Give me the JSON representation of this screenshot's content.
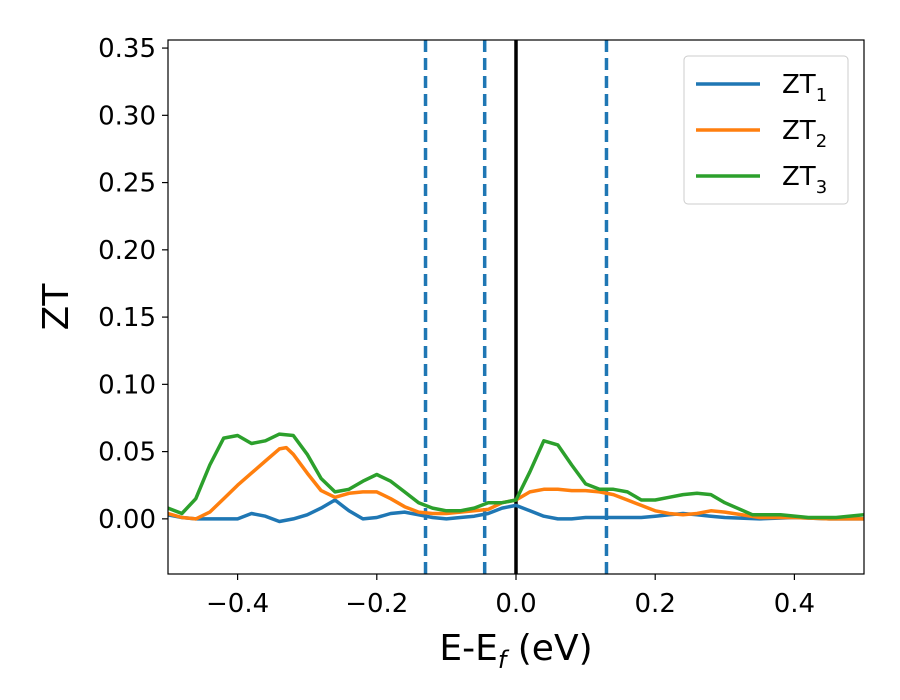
{
  "chart_data": {
    "type": "line",
    "xlabel": "E-E",
    "xlabel_sub": "f",
    "xlabel_unit": " (eV)",
    "ylabel": "ZT",
    "xlim": [
      -0.5,
      0.5
    ],
    "ylim": [
      -0.041,
      0.356
    ],
    "xticks": [
      -0.4,
      -0.2,
      0.0,
      0.2,
      0.4
    ],
    "xtick_labels": [
      "−0.4",
      "−0.2",
      "0.0",
      "0.2",
      "0.4"
    ],
    "yticks": [
      0.0,
      0.05,
      0.1,
      0.15,
      0.2,
      0.25,
      0.3,
      0.35
    ],
    "ytick_labels": [
      "0.00",
      "0.05",
      "0.10",
      "0.15",
      "0.20",
      "0.25",
      "0.30",
      "0.35"
    ],
    "legend_position": "top-right",
    "grid": false,
    "vertical_lines": [
      {
        "x": -0.13,
        "style": "dashed",
        "color": "#1f77b4"
      },
      {
        "x": -0.045,
        "style": "dashed",
        "color": "#1f77b4"
      },
      {
        "x": 0.0,
        "style": "solid",
        "color": "#000000"
      },
      {
        "x": 0.13,
        "style": "dashed",
        "color": "#1f77b4"
      }
    ],
    "series": [
      {
        "name": "ZT",
        "name_sub": "1",
        "color": "#1f77b4",
        "x": [
          -0.5,
          -0.48,
          -0.46,
          -0.44,
          -0.42,
          -0.4,
          -0.38,
          -0.36,
          -0.34,
          -0.32,
          -0.3,
          -0.28,
          -0.26,
          -0.24,
          -0.22,
          -0.2,
          -0.18,
          -0.16,
          -0.14,
          -0.12,
          -0.1,
          -0.08,
          -0.06,
          -0.04,
          -0.02,
          0.0,
          0.02,
          0.04,
          0.06,
          0.08,
          0.1,
          0.12,
          0.14,
          0.16,
          0.18,
          0.2,
          0.22,
          0.24,
          0.26,
          0.28,
          0.3,
          0.35,
          0.4,
          0.45,
          0.5
        ],
        "y": [
          0.003,
          0.001,
          0.0,
          0.0,
          0.0,
          0.0,
          0.004,
          0.002,
          -0.002,
          0.0,
          0.003,
          0.008,
          0.014,
          0.006,
          0.0,
          0.001,
          0.004,
          0.005,
          0.003,
          0.001,
          0.0,
          0.001,
          0.002,
          0.004,
          0.008,
          0.01,
          0.006,
          0.002,
          0.0,
          0.0,
          0.001,
          0.001,
          0.001,
          0.001,
          0.001,
          0.002,
          0.003,
          0.004,
          0.003,
          0.002,
          0.001,
          0.0,
          0.001,
          0.0,
          0.0
        ]
      },
      {
        "name": "ZT",
        "name_sub": "2",
        "color": "#ff7f0e",
        "x": [
          -0.5,
          -0.48,
          -0.46,
          -0.44,
          -0.42,
          -0.4,
          -0.38,
          -0.36,
          -0.34,
          -0.33,
          -0.32,
          -0.3,
          -0.28,
          -0.26,
          -0.24,
          -0.22,
          -0.2,
          -0.18,
          -0.16,
          -0.14,
          -0.12,
          -0.1,
          -0.08,
          -0.06,
          -0.04,
          -0.02,
          0.0,
          0.02,
          0.04,
          0.06,
          0.08,
          0.1,
          0.12,
          0.14,
          0.16,
          0.18,
          0.2,
          0.22,
          0.24,
          0.26,
          0.28,
          0.3,
          0.35,
          0.4,
          0.45,
          0.5
        ],
        "y": [
          0.004,
          0.001,
          0.0,
          0.005,
          0.015,
          0.025,
          0.034,
          0.043,
          0.052,
          0.053,
          0.048,
          0.034,
          0.021,
          0.016,
          0.019,
          0.02,
          0.02,
          0.015,
          0.009,
          0.005,
          0.004,
          0.004,
          0.005,
          0.006,
          0.007,
          0.012,
          0.014,
          0.02,
          0.022,
          0.022,
          0.021,
          0.021,
          0.02,
          0.018,
          0.014,
          0.01,
          0.006,
          0.004,
          0.003,
          0.004,
          0.006,
          0.005,
          0.001,
          0.001,
          0.0,
          0.0
        ]
      },
      {
        "name": "ZT",
        "name_sub": "3",
        "color": "#2ca02c",
        "x": [
          -0.5,
          -0.48,
          -0.46,
          -0.44,
          -0.42,
          -0.4,
          -0.38,
          -0.36,
          -0.34,
          -0.32,
          -0.3,
          -0.28,
          -0.26,
          -0.24,
          -0.22,
          -0.2,
          -0.18,
          -0.16,
          -0.14,
          -0.12,
          -0.1,
          -0.08,
          -0.06,
          -0.04,
          -0.02,
          0.0,
          0.02,
          0.04,
          0.06,
          0.08,
          0.1,
          0.12,
          0.14,
          0.16,
          0.18,
          0.2,
          0.22,
          0.24,
          0.26,
          0.28,
          0.3,
          0.34,
          0.38,
          0.42,
          0.46,
          0.5
        ],
        "y": [
          0.008,
          0.004,
          0.015,
          0.04,
          0.06,
          0.062,
          0.056,
          0.058,
          0.063,
          0.062,
          0.048,
          0.03,
          0.02,
          0.022,
          0.028,
          0.033,
          0.028,
          0.02,
          0.012,
          0.008,
          0.006,
          0.006,
          0.008,
          0.012,
          0.012,
          0.014,
          0.035,
          0.058,
          0.055,
          0.04,
          0.026,
          0.022,
          0.022,
          0.02,
          0.014,
          0.014,
          0.016,
          0.018,
          0.019,
          0.018,
          0.012,
          0.003,
          0.003,
          0.001,
          0.001,
          0.003
        ]
      }
    ]
  }
}
